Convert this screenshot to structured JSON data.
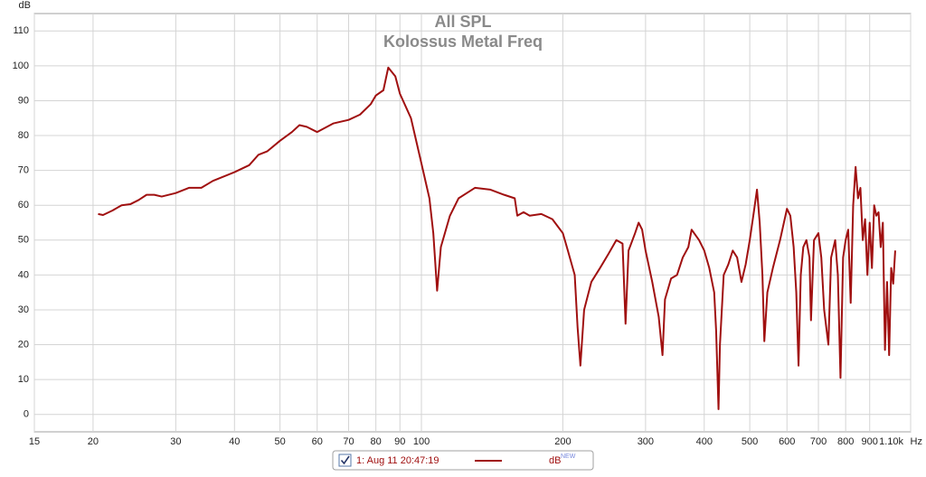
{
  "chart_data": {
    "type": "line",
    "title": "All SPL",
    "subtitle": "Kolossus Metal Freq",
    "y_label": "dB",
    "x_label": "Hz",
    "log_x": true,
    "grid": true,
    "xlim": [
      15,
      1100
    ],
    "ylim": [
      -5,
      115
    ],
    "xticks": [
      15,
      20,
      30,
      40,
      50,
      60,
      70,
      80,
      90,
      100,
      200,
      300,
      400,
      500,
      600,
      700,
      800,
      900,
      {
        "value": 1100,
        "label": "1.10k"
      }
    ],
    "yticks": [
      0,
      10,
      20,
      30,
      40,
      50,
      60,
      70,
      80,
      90,
      100,
      110
    ],
    "legend": {
      "checkbox": true,
      "entry_label": "1: Aug 11 20:47:19",
      "entry_name": "dB",
      "entry_tag": "NEW"
    },
    "x": [
      20.5,
      21,
      22,
      23,
      24,
      25,
      26,
      27,
      28,
      30,
      32,
      34,
      36,
      40,
      43,
      45,
      47,
      50,
      53,
      55,
      57,
      60,
      65,
      70,
      74,
      78,
      80,
      83,
      85,
      88,
      90,
      95,
      100,
      104,
      106,
      108,
      110,
      115,
      120,
      130,
      140,
      150,
      158,
      160,
      165,
      170,
      180,
      190,
      200,
      205,
      212,
      215,
      218,
      222,
      230,
      240,
      250,
      260,
      268,
      272,
      276,
      285,
      290,
      295,
      300,
      310,
      320,
      326,
      330,
      340,
      350,
      360,
      370,
      376,
      390,
      400,
      410,
      420,
      424,
      429,
      432,
      440,
      450,
      460,
      470,
      480,
      490,
      500,
      510,
      518,
      525,
      532,
      537,
      545,
      560,
      580,
      600,
      610,
      620,
      628,
      635,
      642,
      650,
      660,
      670,
      675,
      685,
      700,
      710,
      720,
      735,
      745,
      760,
      770,
      780,
      790,
      800,
      810,
      820,
      830,
      840,
      850,
      860,
      870,
      880,
      890,
      900,
      910,
      920,
      930,
      940,
      950,
      960,
      970,
      980,
      990,
      1000,
      1010,
      1020
    ],
    "series": [
      {
        "name": "dB",
        "color": "#a01010",
        "values": [
          57.5,
          57.2,
          58.5,
          60,
          60.3,
          61.5,
          63,
          63,
          62.5,
          63.5,
          65,
          65,
          67,
          69.5,
          71.5,
          74.5,
          75.5,
          78.5,
          81,
          83,
          82.5,
          81,
          83.5,
          84.5,
          86,
          89,
          91.5,
          93,
          99.5,
          97,
          92,
          85,
          72,
          62,
          52,
          35.5,
          48,
          57,
          62,
          65,
          64.5,
          63,
          62,
          57,
          58,
          57,
          57.5,
          56,
          52,
          47,
          40,
          25,
          14,
          30,
          38,
          42,
          46,
          50,
          49,
          26,
          47,
          52,
          55,
          53,
          47,
          38,
          28,
          17,
          33,
          39,
          40,
          45,
          48,
          53,
          50,
          47,
          42,
          35,
          24,
          1.5,
          20,
          40,
          43,
          47,
          45,
          38,
          43,
          50,
          58,
          64.5,
          55,
          40,
          21,
          35,
          42,
          50,
          59,
          57,
          48,
          35,
          14,
          40,
          48,
          50,
          45,
          27,
          50,
          52,
          45,
          30,
          20,
          45,
          50,
          40,
          10.5,
          45,
          50,
          53,
          32,
          60,
          71,
          62,
          65,
          50,
          56,
          40,
          55,
          42,
          60,
          57,
          58,
          48,
          55,
          18.5,
          38,
          17,
          42,
          37.5,
          47
        ]
      }
    ]
  }
}
